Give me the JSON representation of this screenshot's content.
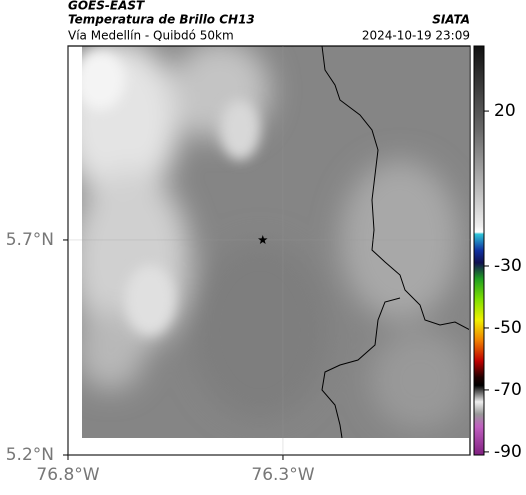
{
  "map": {
    "title": "GOES-EAST",
    "subtitle": "Temperatura de Brillo CH13",
    "source": "SIATA",
    "route": "Vía Medellín - Quibdó 50km",
    "datetime": "2024-10-19 23:09",
    "lonlim": [
      -76.8,
      -75.865
    ],
    "latlim": [
      5.2,
      6.151
    ],
    "lonticks": [
      {
        "value": -76.8,
        "label": "76.8°W"
      },
      {
        "value": -76.3,
        "label": "76.3°W"
      }
    ],
    "latticks": [
      {
        "value": 5.7,
        "label": "5.7°N"
      },
      {
        "value": 5.2,
        "label": "5.2°N"
      }
    ],
    "marker": {
      "lon": -76.347,
      "lat": 5.7
    },
    "colorbar": {
      "lim": [
        -91,
        41
      ],
      "ticks": [
        20,
        -30,
        -50,
        -70,
        -90
      ]
    }
  }
}
